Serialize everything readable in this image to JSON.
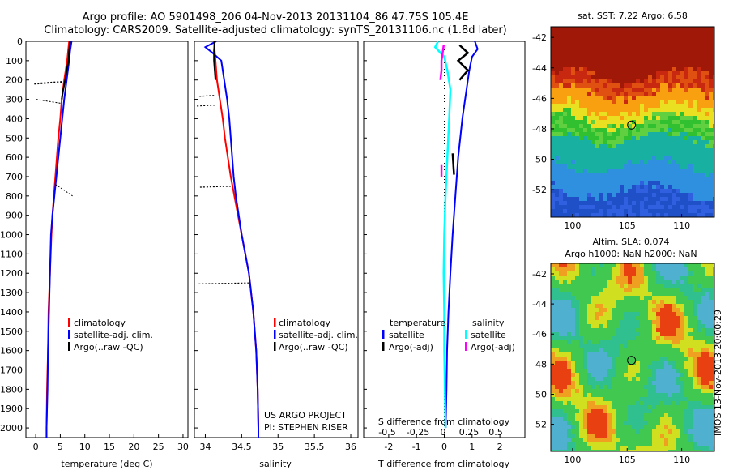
{
  "header": {
    "title_line1": "Argo profile: AO 5901498_206 04-Nov-2013 20131104_86 47.75S 105.4E",
    "title_line2": "Climatology: CARS2009. Satellite-adjusted climatology: synTS_20131106.nc (1.8d later)"
  },
  "colors": {
    "climatology": "#ff0000",
    "satellite_clim": "#0000ff",
    "argo": "#000000",
    "sat_diff": "#00ffff",
    "argo_adj": "#ff00ff"
  },
  "chart_data": [
    {
      "id": "temperature",
      "type": "line",
      "xlabel": "temperature (deg C)",
      "xticks": [
        "0",
        "5",
        "10",
        "15",
        "20",
        "25",
        "30"
      ],
      "xlim": [
        -2,
        31
      ],
      "yticks": [
        "0",
        "100",
        "200",
        "300",
        "400",
        "500",
        "600",
        "700",
        "800",
        "900",
        "1000",
        "1100",
        "1200",
        "1300",
        "1400",
        "1500",
        "1600",
        "1700",
        "1800",
        "1900",
        "2000"
      ],
      "ylim": [
        2050,
        0
      ],
      "legend": [
        "climatology",
        "satellite-adj. clim.",
        "Argo(..raw -QC)"
      ],
      "series": [
        {
          "key": "climatology",
          "depth": [
            0,
            50,
            100,
            200,
            300,
            400,
            500,
            600,
            700,
            800,
            900,
            1000,
            1200,
            1400,
            1600,
            1800,
            2000,
            2050
          ],
          "values": [
            6.8,
            6.6,
            6.4,
            5.8,
            5.3,
            5.0,
            4.6,
            4.3,
            4.0,
            3.7,
            3.4,
            3.2,
            2.9,
            2.6,
            2.5,
            2.3,
            2.2,
            2.2
          ]
        },
        {
          "key": "satellite_clim",
          "depth": [
            0,
            50,
            100,
            200,
            300,
            400,
            500,
            600,
            700,
            800,
            900,
            1000,
            1200,
            1400,
            1600,
            1800,
            2000,
            2050
          ],
          "values": [
            7.3,
            7.0,
            6.8,
            6.3,
            5.8,
            5.4,
            5.0,
            4.6,
            4.2,
            3.8,
            3.4,
            3.1,
            2.9,
            2.7,
            2.5,
            2.4,
            2.2,
            2.2
          ]
        },
        {
          "key": "argo",
          "depth": [
            0,
            50,
            100,
            150,
            200,
            250,
            300
          ],
          "values": [
            7.0,
            6.8,
            6.7,
            6.3,
            6.0,
            5.6,
            5.3
          ]
        }
      ]
    },
    {
      "id": "salinity",
      "type": "line",
      "xlabel": "salinity",
      "xticks": [
        "34",
        "34.5",
        "35",
        "35.5",
        "36"
      ],
      "xlim": [
        33.85,
        36.1
      ],
      "yticks": [],
      "ylim": [
        2050,
        0
      ],
      "legend": [
        "climatology",
        "satellite-adj. clim.",
        "Argo(..raw -QC)"
      ],
      "annotation": [
        "US ARGO PROJECT",
        "PI: STEPHEN RISER"
      ],
      "series": [
        {
          "key": "climatology",
          "depth": [
            0,
            100,
            200,
            300,
            400,
            500,
            600,
            700,
            800,
            900,
            1000,
            1200,
            1400,
            1600,
            1800,
            2000,
            2050
          ],
          "values": [
            34.12,
            34.14,
            34.16,
            34.2,
            34.24,
            34.27,
            34.31,
            34.35,
            34.4,
            34.45,
            34.5,
            34.6,
            34.66,
            34.7,
            34.72,
            34.73,
            34.73
          ]
        },
        {
          "key": "satellite_clim",
          "depth": [
            0,
            30,
            60,
            100,
            200,
            300,
            400,
            500,
            600,
            700,
            800,
            900,
            1000,
            1200,
            1400,
            1600,
            1800,
            2000,
            2050
          ],
          "values": [
            34.15,
            34.0,
            34.1,
            34.22,
            34.26,
            34.3,
            34.33,
            34.35,
            34.37,
            34.39,
            34.42,
            34.46,
            34.5,
            34.6,
            34.66,
            34.7,
            34.72,
            34.73,
            34.73
          ]
        },
        {
          "key": "argo",
          "depth": [
            0,
            50,
            100,
            150,
            200
          ],
          "values": [
            34.13,
            34.12,
            34.12,
            34.13,
            34.14
          ]
        }
      ]
    },
    {
      "id": "difference",
      "type": "line",
      "xlabel": "T difference from climatology",
      "xlabel_top": "S difference from climatology",
      "xticks_T": [
        "-2",
        "-1",
        "0",
        "1",
        "2"
      ],
      "xlim_T": [
        -2.9,
        2.9
      ],
      "xticks_S": [
        "-0.5",
        "-0.25",
        "0",
        "0.25",
        "0.5"
      ],
      "legend_temperature_title": "temperature",
      "legend_salinity_title": "salinity",
      "legend_left": [
        "satellite",
        "Argo(-adj)"
      ],
      "legend_right": [
        "satellite",
        "Argo(-adj)"
      ],
      "series": [
        {
          "key": "sat_T",
          "depth": [
            0,
            40,
            80,
            150,
            250,
            400,
            600,
            800,
            1000,
            1200,
            1400,
            1600,
            1800,
            2000
          ],
          "values": [
            1.1,
            1.2,
            1.0,
            0.9,
            0.8,
            0.65,
            0.5,
            0.4,
            0.3,
            0.22,
            0.15,
            0.1,
            0.08,
            0.05
          ]
        },
        {
          "key": "sat_S",
          "depth": [
            0,
            30,
            80,
            150,
            250,
            400,
            600,
            800,
            1000,
            1200,
            1400,
            1600,
            1800,
            2000
          ],
          "values": [
            -0.1,
            -0.15,
            0.0,
            0.05,
            0.1,
            0.08,
            0.05,
            0.02,
            0.0,
            -0.01,
            0.0,
            0.0,
            0.01,
            0.02
          ]
        },
        {
          "key": "argo_T",
          "depth": [
            20,
            60,
            100,
            150,
            200
          ],
          "values": [
            0.55,
            0.6,
            0.5,
            0.6,
            0.55
          ]
        },
        {
          "key": "argo_S",
          "depth": [
            20,
            60,
            100,
            150,
            200
          ],
          "values": [
            0.02,
            0.01,
            0.0,
            0.0,
            -0.01
          ]
        }
      ]
    }
  ],
  "maps": {
    "sst": {
      "title": "sat. SST: 7.22 Argo: 6.58",
      "xticks": [
        "100",
        "105",
        "110"
      ],
      "yticks": [
        "-42",
        "-44",
        "-46",
        "-48",
        "-50",
        "-52"
      ],
      "marker": {
        "lon": 105.4,
        "lat": -47.75
      }
    },
    "sla": {
      "title_line1": "Altim. SLA: 0.074",
      "title_line2": "Argo h1000: NaN h2000: NaN",
      "xticks": [
        "100",
        "105",
        "110"
      ],
      "yticks": [
        "-42",
        "-44",
        "-46",
        "-48",
        "-50",
        "-52"
      ],
      "marker": {
        "lon": 105.4,
        "lat": -47.75
      },
      "side_label": "IMOS 13-Nov-2013 20:00:29"
    }
  }
}
